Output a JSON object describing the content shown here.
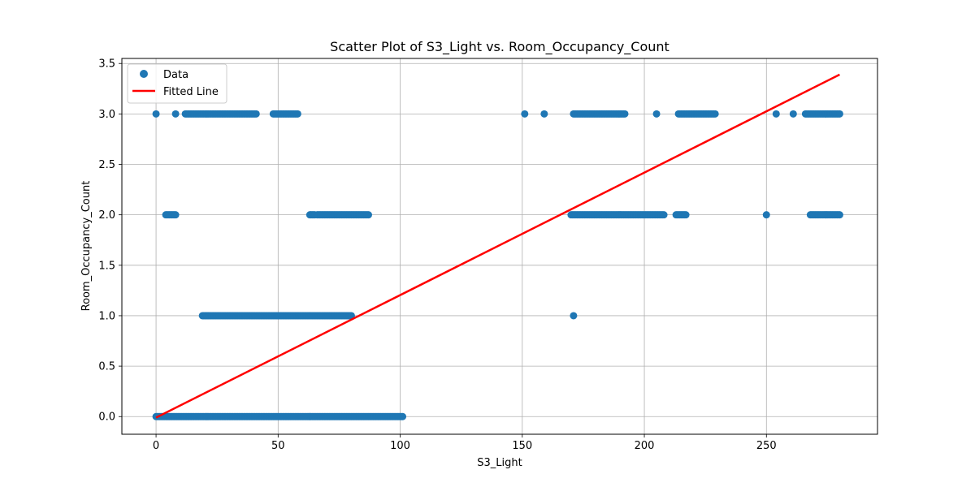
{
  "chart_data": {
    "type": "scatter",
    "title": "Scatter Plot of S3_Light vs. Room_Occupancy_Count",
    "xlabel": "S3_Light",
    "ylabel": "Room_Occupancy_Count",
    "xlim": [
      -14,
      295.5
    ],
    "ylim": [
      -0.175,
      3.55
    ],
    "xticks": [
      0,
      50,
      100,
      150,
      200,
      250
    ],
    "yticks": [
      0.0,
      0.5,
      1.0,
      1.5,
      2.0,
      2.5,
      3.0,
      3.5
    ],
    "xtick_labels": [
      "0",
      "50",
      "100",
      "150",
      "200",
      "250"
    ],
    "ytick_labels": [
      "0.0",
      "0.5",
      "1.0",
      "1.5",
      "2.0",
      "2.5",
      "3.0",
      "3.5"
    ],
    "grid": true,
    "legend_position": "upper left",
    "colors": {
      "data": "#1f77b4",
      "fitted": "#ff0000"
    },
    "series": [
      {
        "name": "Data",
        "kind": "points",
        "groups": [
          {
            "y": 0,
            "x_start": 0,
            "x_end": 101,
            "step": 0.5
          },
          {
            "y": 1,
            "x_start": 19,
            "x_end": 80,
            "step": 0.5
          },
          {
            "y": 1,
            "points": [
              171
            ]
          },
          {
            "y": 2,
            "x_start": 4,
            "x_end": 8,
            "step": 0.5
          },
          {
            "y": 2,
            "x_start": 63,
            "x_end": 65,
            "step": 0.5
          },
          {
            "y": 2,
            "x_start": 66,
            "x_end": 87,
            "step": 0.5
          },
          {
            "y": 2,
            "x_start": 170,
            "x_end": 208,
            "step": 0.5
          },
          {
            "y": 2,
            "x_start": 213,
            "x_end": 217,
            "step": 0.5
          },
          {
            "y": 2,
            "points": [
              250
            ]
          },
          {
            "y": 2,
            "x_start": 268,
            "x_end": 280,
            "step": 0.5
          },
          {
            "y": 3,
            "points": [
              0,
              8
            ]
          },
          {
            "y": 3,
            "x_start": 12,
            "x_end": 41,
            "step": 0.5
          },
          {
            "y": 3,
            "x_start": 48,
            "x_end": 58,
            "step": 0.5
          },
          {
            "y": 3,
            "points": [
              151,
              159
            ]
          },
          {
            "y": 3,
            "x_start": 171,
            "x_end": 192,
            "step": 0.5
          },
          {
            "y": 3,
            "points": [
              205
            ]
          },
          {
            "y": 3,
            "x_start": 214,
            "x_end": 229,
            "step": 0.5
          },
          {
            "y": 3,
            "points": [
              254,
              261
            ]
          },
          {
            "y": 3,
            "x_start": 266,
            "x_end": 280,
            "step": 0.5
          }
        ]
      },
      {
        "name": "Fitted Line",
        "kind": "line",
        "points": [
          [
            0,
            -0.01
          ],
          [
            280,
            3.39
          ]
        ]
      }
    ]
  }
}
